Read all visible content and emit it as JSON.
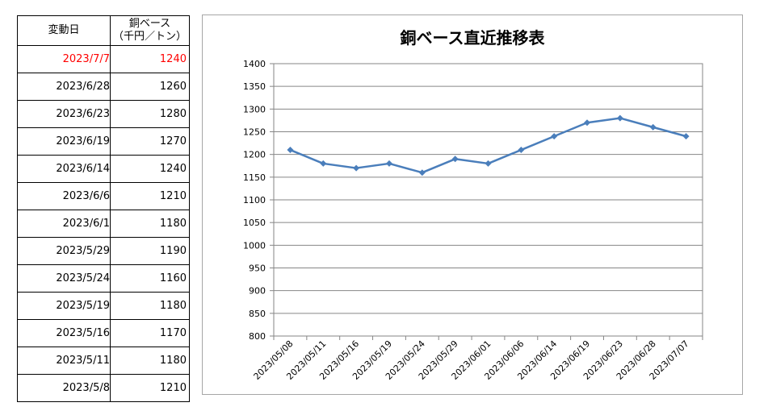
{
  "table": {
    "header": {
      "date": "変動日",
      "value_line1": "銅ベース",
      "value_line2": "（千円／トン）"
    },
    "rows": [
      {
        "date": "2023/7/7",
        "value": "1240"
      },
      {
        "date": "2023/6/28",
        "value": "1260"
      },
      {
        "date": "2023/6/23",
        "value": "1280"
      },
      {
        "date": "2023/6/19",
        "value": "1270"
      },
      {
        "date": "2023/6/14",
        "value": "1240"
      },
      {
        "date": "2023/6/6",
        "value": "1210"
      },
      {
        "date": "2023/6/1",
        "value": "1180"
      },
      {
        "date": "2023/5/29",
        "value": "1190"
      },
      {
        "date": "2023/5/24",
        "value": "1160"
      },
      {
        "date": "2023/5/19",
        "value": "1180"
      },
      {
        "date": "2023/5/16",
        "value": "1170"
      },
      {
        "date": "2023/5/11",
        "value": "1180"
      },
      {
        "date": "2023/5/8",
        "value": "1210"
      }
    ],
    "highlight_color": "#ff0000"
  },
  "chart_data": {
    "type": "line",
    "title": "銅ベース直近推移表",
    "xlabel": "",
    "ylabel": "",
    "categories": [
      "2023/05/08",
      "2023/05/11",
      "2023/05/16",
      "2023/05/19",
      "2023/05/24",
      "2023/05/29",
      "2023/06/01",
      "2023/06/06",
      "2023/06/14",
      "2023/06/19",
      "2023/06/23",
      "2023/06/28",
      "2023/07/07"
    ],
    "series": [
      {
        "values": [
          1210,
          1180,
          1170,
          1180,
          1160,
          1190,
          1180,
          1210,
          1240,
          1270,
          1280,
          1260,
          1240
        ]
      }
    ],
    "ylim": [
      800,
      1400
    ],
    "yticks": [
      800,
      850,
      900,
      950,
      1000,
      1050,
      1100,
      1150,
      1200,
      1250,
      1300,
      1350,
      1400
    ],
    "grid": true,
    "line_color": "#4a7ebb",
    "marker": "diamond",
    "legend": "none"
  }
}
